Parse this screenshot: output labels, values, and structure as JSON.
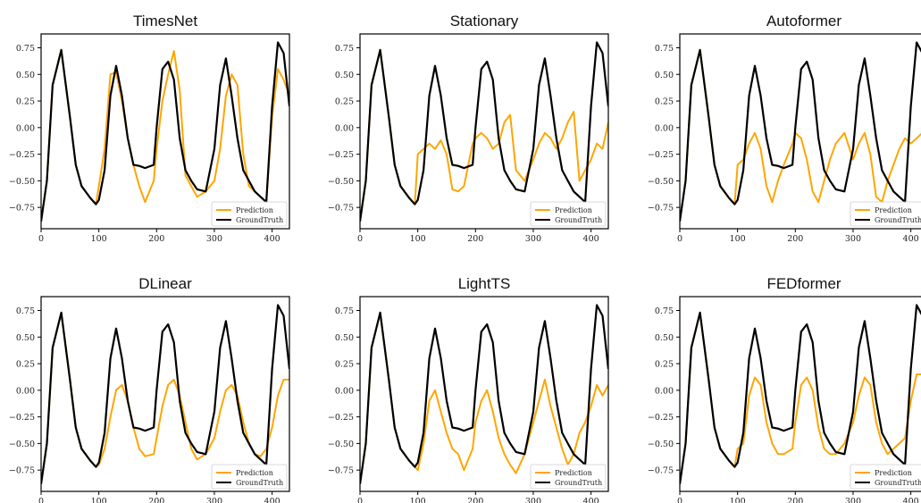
{
  "colors": {
    "prediction": "#FFA500",
    "ground_truth": "#000000"
  },
  "chart_data": [
    {
      "type": "line",
      "title": "TimesNet",
      "legend": "bottom-right",
      "xlim": [
        0,
        430
      ],
      "ylim": [
        -0.95,
        0.88
      ],
      "xticks": [
        "0",
        "100",
        "200",
        "300",
        "400"
      ],
      "yticks": [
        "0.75",
        "0.50",
        "0.25",
        "0.00",
        "−0.25",
        "−0.50",
        "−0.75"
      ],
      "x": [
        0,
        10,
        20,
        35,
        50,
        60,
        70,
        85,
        95,
        100,
        110,
        120,
        130,
        140,
        150,
        160,
        170,
        180,
        195,
        200,
        210,
        220,
        230,
        240,
        250,
        260,
        270,
        285,
        300,
        310,
        320,
        330,
        340,
        350,
        360,
        370,
        380,
        390,
        400,
        410,
        420,
        430
      ],
      "series": [
        {
          "name": "Prediction",
          "color": "#FFA500",
          "values": [
            -0.88,
            -0.5,
            0.4,
            0.73,
            0.1,
            -0.35,
            -0.55,
            -0.66,
            -0.72,
            -0.55,
            -0.2,
            0.5,
            0.52,
            0.25,
            -0.1,
            -0.35,
            -0.55,
            -0.7,
            -0.5,
            -0.2,
            0.25,
            0.5,
            0.72,
            0.35,
            -0.45,
            -0.55,
            -0.65,
            -0.6,
            -0.5,
            -0.2,
            0.3,
            0.5,
            0.4,
            -0.25,
            -0.55,
            -0.6,
            -0.65,
            -0.7,
            0.1,
            0.55,
            0.45,
            0.3
          ]
        },
        {
          "name": "GroundTruth",
          "color": "#000000",
          "values": [
            -0.88,
            -0.5,
            0.4,
            0.73,
            0.1,
            -0.35,
            -0.55,
            -0.66,
            -0.72,
            -0.68,
            -0.4,
            0.3,
            0.58,
            0.3,
            -0.1,
            -0.35,
            -0.36,
            -0.38,
            -0.35,
            0.0,
            0.55,
            0.62,
            0.45,
            -0.1,
            -0.4,
            -0.5,
            -0.58,
            -0.6,
            -0.2,
            0.4,
            0.65,
            0.3,
            -0.1,
            -0.4,
            -0.5,
            -0.6,
            -0.65,
            -0.7,
            0.2,
            0.8,
            0.7,
            0.2
          ]
        }
      ]
    },
    {
      "type": "line",
      "title": "Stationary",
      "legend": "bottom-right",
      "xlim": [
        0,
        430
      ],
      "ylim": [
        -0.95,
        0.88
      ],
      "xticks": [
        "0",
        "100",
        "200",
        "300",
        "400"
      ],
      "yticks": [
        "0.75",
        "0.50",
        "0.25",
        "0.00",
        "−0.25",
        "−0.50",
        "−0.75"
      ],
      "x": [
        0,
        10,
        20,
        35,
        50,
        60,
        70,
        85,
        95,
        100,
        110,
        120,
        130,
        140,
        150,
        160,
        170,
        180,
        195,
        200,
        210,
        220,
        230,
        240,
        250,
        260,
        270,
        285,
        300,
        310,
        320,
        330,
        340,
        350,
        360,
        370,
        380,
        390,
        400,
        410,
        420,
        430
      ],
      "series": [
        {
          "name": "Prediction",
          "color": "#FFA500",
          "values": [
            -0.88,
            -0.5,
            0.4,
            0.73,
            0.1,
            -0.35,
            -0.55,
            -0.66,
            -0.72,
            -0.25,
            -0.2,
            -0.15,
            -0.2,
            -0.12,
            -0.25,
            -0.58,
            -0.6,
            -0.55,
            -0.15,
            -0.1,
            -0.05,
            -0.1,
            -0.2,
            -0.15,
            0.05,
            0.12,
            -0.4,
            -0.5,
            -0.3,
            -0.15,
            -0.05,
            -0.1,
            -0.2,
            -0.1,
            0.05,
            0.15,
            -0.5,
            -0.4,
            -0.3,
            -0.15,
            -0.2,
            0.05
          ]
        },
        {
          "name": "GroundTruth",
          "color": "#000000",
          "values": [
            -0.88,
            -0.5,
            0.4,
            0.73,
            0.1,
            -0.35,
            -0.55,
            -0.66,
            -0.72,
            -0.68,
            -0.4,
            0.3,
            0.58,
            0.3,
            -0.1,
            -0.35,
            -0.36,
            -0.38,
            -0.35,
            0.0,
            0.55,
            0.62,
            0.45,
            -0.1,
            -0.4,
            -0.5,
            -0.58,
            -0.6,
            -0.2,
            0.4,
            0.65,
            0.3,
            -0.1,
            -0.4,
            -0.5,
            -0.6,
            -0.65,
            -0.7,
            0.2,
            0.8,
            0.7,
            0.2
          ]
        }
      ]
    },
    {
      "type": "line",
      "title": "Autoformer",
      "legend": "bottom-right",
      "xlim": [
        0,
        430
      ],
      "ylim": [
        -0.95,
        0.88
      ],
      "xticks": [
        "0",
        "100",
        "200",
        "300",
        "400"
      ],
      "yticks": [
        "0.75",
        "0.50",
        "0.25",
        "0.00",
        "−0.25",
        "−0.50",
        "−0.75"
      ],
      "x": [
        0,
        10,
        20,
        35,
        50,
        60,
        70,
        85,
        95,
        100,
        110,
        120,
        130,
        140,
        150,
        160,
        170,
        180,
        195,
        200,
        210,
        220,
        230,
        240,
        250,
        260,
        270,
        285,
        300,
        310,
        320,
        330,
        340,
        350,
        360,
        370,
        380,
        390,
        400,
        410,
        420,
        430
      ],
      "series": [
        {
          "name": "Prediction",
          "color": "#FFA500",
          "values": [
            -0.88,
            -0.5,
            0.4,
            0.73,
            0.1,
            -0.35,
            -0.55,
            -0.66,
            -0.72,
            -0.35,
            -0.3,
            -0.15,
            -0.05,
            -0.2,
            -0.55,
            -0.7,
            -0.5,
            -0.35,
            -0.15,
            -0.05,
            -0.1,
            -0.3,
            -0.6,
            -0.7,
            -0.5,
            -0.3,
            -0.15,
            -0.05,
            -0.3,
            -0.15,
            -0.05,
            -0.25,
            -0.65,
            -0.7,
            -0.5,
            -0.35,
            -0.2,
            -0.1,
            -0.15,
            -0.1,
            -0.05,
            0.05
          ]
        },
        {
          "name": "GroundTruth",
          "color": "#000000",
          "values": [
            -0.88,
            -0.5,
            0.4,
            0.73,
            0.1,
            -0.35,
            -0.55,
            -0.66,
            -0.72,
            -0.68,
            -0.4,
            0.3,
            0.58,
            0.3,
            -0.1,
            -0.35,
            -0.36,
            -0.38,
            -0.35,
            0.0,
            0.55,
            0.62,
            0.45,
            -0.1,
            -0.4,
            -0.5,
            -0.58,
            -0.6,
            -0.2,
            0.4,
            0.65,
            0.3,
            -0.1,
            -0.4,
            -0.5,
            -0.6,
            -0.65,
            -0.7,
            0.2,
            0.8,
            0.7,
            0.2
          ]
        }
      ]
    },
    {
      "type": "line",
      "title": "DLinear",
      "legend": "bottom-right",
      "xlim": [
        0,
        430
      ],
      "ylim": [
        -0.95,
        0.88
      ],
      "xticks": [
        "0",
        "100",
        "200",
        "300",
        "400"
      ],
      "yticks": [
        "0.75",
        "0.50",
        "0.25",
        "0.00",
        "−0.25",
        "−0.50",
        "−0.75"
      ],
      "x": [
        0,
        10,
        20,
        35,
        50,
        60,
        70,
        85,
        95,
        100,
        110,
        120,
        130,
        140,
        150,
        160,
        170,
        180,
        195,
        200,
        210,
        220,
        230,
        240,
        250,
        260,
        270,
        285,
        300,
        310,
        320,
        330,
        340,
        350,
        360,
        370,
        380,
        390,
        400,
        410,
        420,
        430
      ],
      "series": [
        {
          "name": "Prediction",
          "color": "#FFA500",
          "values": [
            -0.88,
            -0.5,
            0.4,
            0.73,
            0.1,
            -0.35,
            -0.55,
            -0.66,
            -0.72,
            -0.7,
            -0.55,
            -0.25,
            0.0,
            0.05,
            -0.1,
            -0.35,
            -0.55,
            -0.62,
            -0.6,
            -0.45,
            -0.15,
            0.05,
            0.1,
            -0.05,
            -0.3,
            -0.55,
            -0.65,
            -0.6,
            -0.45,
            -0.2,
            0.0,
            0.05,
            -0.05,
            -0.3,
            -0.5,
            -0.6,
            -0.62,
            -0.55,
            -0.35,
            -0.05,
            0.1,
            0.1
          ]
        },
        {
          "name": "GroundTruth",
          "color": "#000000",
          "values": [
            -0.88,
            -0.5,
            0.4,
            0.73,
            0.1,
            -0.35,
            -0.55,
            -0.66,
            -0.72,
            -0.68,
            -0.4,
            0.3,
            0.58,
            0.3,
            -0.1,
            -0.35,
            -0.36,
            -0.38,
            -0.35,
            0.0,
            0.55,
            0.62,
            0.45,
            -0.1,
            -0.4,
            -0.5,
            -0.58,
            -0.6,
            -0.2,
            0.4,
            0.65,
            0.3,
            -0.1,
            -0.4,
            -0.5,
            -0.6,
            -0.65,
            -0.7,
            0.2,
            0.8,
            0.7,
            0.2
          ]
        }
      ]
    },
    {
      "type": "line",
      "title": "LightTS",
      "legend": "bottom-right",
      "xlim": [
        0,
        430
      ],
      "ylim": [
        -0.95,
        0.88
      ],
      "xticks": [
        "0",
        "100",
        "200",
        "300",
        "400"
      ],
      "yticks": [
        "0.75",
        "0.50",
        "0.25",
        "0.00",
        "−0.25",
        "−0.50",
        "−0.75"
      ],
      "x": [
        0,
        10,
        20,
        35,
        50,
        60,
        70,
        85,
        95,
        100,
        110,
        120,
        130,
        140,
        150,
        160,
        170,
        180,
        195,
        200,
        210,
        220,
        230,
        240,
        250,
        260,
        270,
        285,
        300,
        310,
        320,
        330,
        340,
        350,
        360,
        370,
        380,
        390,
        400,
        410,
        420,
        430
      ],
      "series": [
        {
          "name": "Prediction",
          "color": "#FFA500",
          "values": [
            -0.88,
            -0.5,
            0.4,
            0.73,
            0.1,
            -0.35,
            -0.55,
            -0.66,
            -0.72,
            -0.75,
            -0.5,
            -0.1,
            0.0,
            -0.2,
            -0.4,
            -0.55,
            -0.6,
            -0.75,
            -0.55,
            -0.3,
            -0.1,
            0.0,
            -0.2,
            -0.45,
            -0.6,
            -0.7,
            -0.78,
            -0.6,
            -0.3,
            -0.1,
            0.1,
            -0.15,
            -0.35,
            -0.55,
            -0.7,
            -0.6,
            -0.4,
            -0.3,
            -0.15,
            0.05,
            -0.05,
            0.05
          ]
        },
        {
          "name": "GroundTruth",
          "color": "#000000",
          "values": [
            -0.88,
            -0.5,
            0.4,
            0.73,
            0.1,
            -0.35,
            -0.55,
            -0.66,
            -0.72,
            -0.68,
            -0.4,
            0.3,
            0.58,
            0.3,
            -0.1,
            -0.35,
            -0.36,
            -0.38,
            -0.35,
            0.0,
            0.55,
            0.62,
            0.45,
            -0.1,
            -0.4,
            -0.5,
            -0.58,
            -0.6,
            -0.2,
            0.4,
            0.65,
            0.3,
            -0.1,
            -0.4,
            -0.5,
            -0.6,
            -0.65,
            -0.7,
            0.2,
            0.8,
            0.7,
            0.2
          ]
        }
      ]
    },
    {
      "type": "line",
      "title": "FEDformer",
      "legend": "bottom-right",
      "xlim": [
        0,
        430
      ],
      "ylim": [
        -0.95,
        0.88
      ],
      "xticks": [
        "0",
        "100",
        "200",
        "300",
        "400"
      ],
      "yticks": [
        "0.75",
        "0.50",
        "0.25",
        "0.00",
        "−0.25",
        "−0.50",
        "−0.75"
      ],
      "x": [
        0,
        10,
        20,
        35,
        50,
        60,
        70,
        85,
        95,
        100,
        110,
        120,
        130,
        140,
        150,
        160,
        170,
        180,
        195,
        200,
        210,
        220,
        230,
        240,
        250,
        260,
        270,
        285,
        300,
        310,
        320,
        330,
        340,
        350,
        360,
        370,
        380,
        390,
        400,
        410,
        420,
        430
      ],
      "series": [
        {
          "name": "Prediction",
          "color": "#FFA500",
          "values": [
            -0.88,
            -0.5,
            0.4,
            0.73,
            0.1,
            -0.35,
            -0.55,
            -0.66,
            -0.72,
            -0.55,
            -0.5,
            -0.05,
            0.12,
            0.05,
            -0.3,
            -0.5,
            -0.6,
            -0.6,
            -0.55,
            -0.3,
            0.05,
            0.12,
            0.0,
            -0.35,
            -0.55,
            -0.6,
            -0.6,
            -0.5,
            -0.3,
            -0.05,
            0.12,
            0.05,
            -0.3,
            -0.5,
            -0.6,
            -0.55,
            -0.5,
            -0.45,
            -0.1,
            0.15,
            0.15,
            0.15
          ]
        },
        {
          "name": "GroundTruth",
          "color": "#000000",
          "values": [
            -0.88,
            -0.5,
            0.4,
            0.73,
            0.1,
            -0.35,
            -0.55,
            -0.66,
            -0.72,
            -0.68,
            -0.4,
            0.3,
            0.58,
            0.3,
            -0.1,
            -0.35,
            -0.36,
            -0.38,
            -0.35,
            0.0,
            0.55,
            0.62,
            0.45,
            -0.1,
            -0.4,
            -0.5,
            -0.58,
            -0.6,
            -0.2,
            0.4,
            0.65,
            0.3,
            -0.1,
            -0.4,
            -0.5,
            -0.6,
            -0.65,
            -0.7,
            0.2,
            0.8,
            0.7,
            0.2
          ]
        }
      ]
    }
  ]
}
